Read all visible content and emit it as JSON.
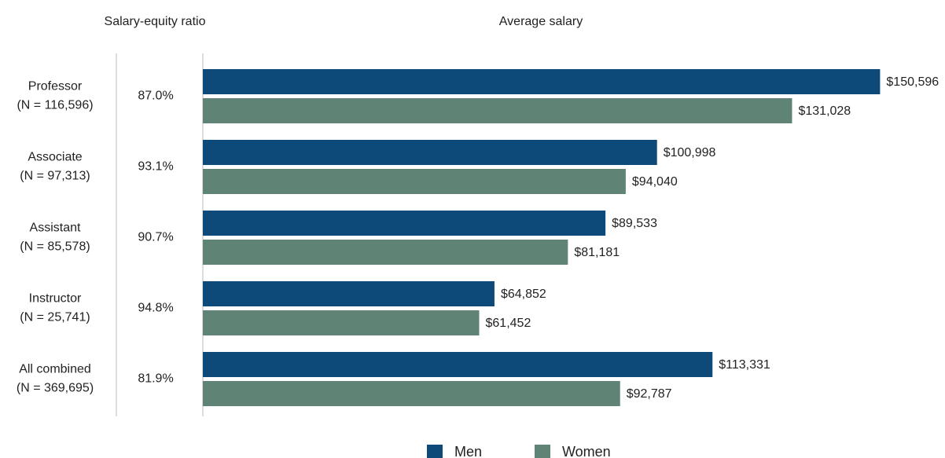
{
  "chart_data": {
    "type": "bar",
    "orientation": "horizontal",
    "ratio_title": "Salary-equity ratio",
    "title": "Average salary",
    "categories": [
      "Professor",
      "Associate",
      "Assistant",
      "Instructor",
      "All combined"
    ],
    "sample_sizes": [
      "(N = 116,596)",
      "(N = 97,313)",
      "(N = 85,578)",
      "(N = 25,741)",
      "(N = 369,695)"
    ],
    "ratios": [
      87.0,
      93.1,
      90.7,
      94.8,
      81.9
    ],
    "ratio_labels": [
      "87.0%",
      "93.1%",
      "90.7%",
      "94.8%",
      "81.9%"
    ],
    "series": [
      {
        "name": "Men",
        "color": "#0d4a7a",
        "values": [
          150596,
          100998,
          89533,
          64852,
          113331
        ],
        "value_labels": [
          "$150,596",
          "$100,998",
          "$89,533",
          "$64,852",
          "$113,331"
        ]
      },
      {
        "name": "Women",
        "color": "#5f8475",
        "values": [
          131028,
          94040,
          81181,
          61452,
          92787
        ],
        "value_labels": [
          "$131,028",
          "$94,040",
          "$81,181",
          "$61,452",
          "$92,787"
        ]
      }
    ],
    "xlim": [
      0,
      150000
    ],
    "legend": "bottom"
  }
}
